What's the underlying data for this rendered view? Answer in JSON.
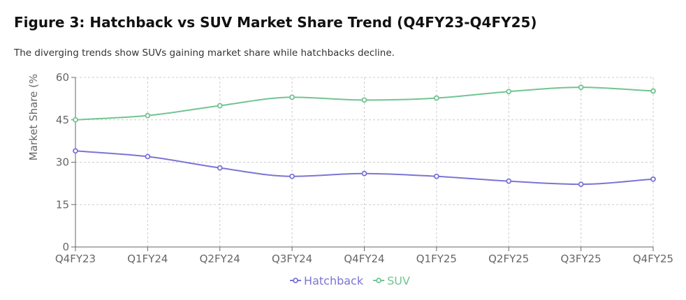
{
  "figure": {
    "title": "Figure 3: Hatchback vs SUV Market Share Trend (Q4FY23-Q4FY25)",
    "subtitle": "The diverging trends show SUVs gaining market share while hatchbacks decline."
  },
  "chart_data": {
    "type": "line",
    "categories": [
      "Q4FY23",
      "Q1FY24",
      "Q2FY24",
      "Q3FY24",
      "Q4FY24",
      "Q1FY25",
      "Q2FY25",
      "Q3FY25",
      "Q4FY25"
    ],
    "series": [
      {
        "name": "Hatchback",
        "color": "#7b74d4",
        "values": [
          34,
          32,
          28,
          25,
          26,
          25,
          23.3,
          22.2,
          24
        ]
      },
      {
        "name": "SUV",
        "color": "#72c492",
        "values": [
          45,
          46.5,
          50,
          53,
          52,
          52.7,
          55,
          56.5,
          55.2
        ]
      }
    ],
    "ylabel": "Market Share (%",
    "ylim": [
      0,
      60
    ],
    "yticks": [
      "0",
      "15",
      "30",
      "45",
      "60"
    ],
    "grid": true,
    "legend": "bottom-center",
    "axis_color": "#666666",
    "grid_color": "#cccccc"
  }
}
